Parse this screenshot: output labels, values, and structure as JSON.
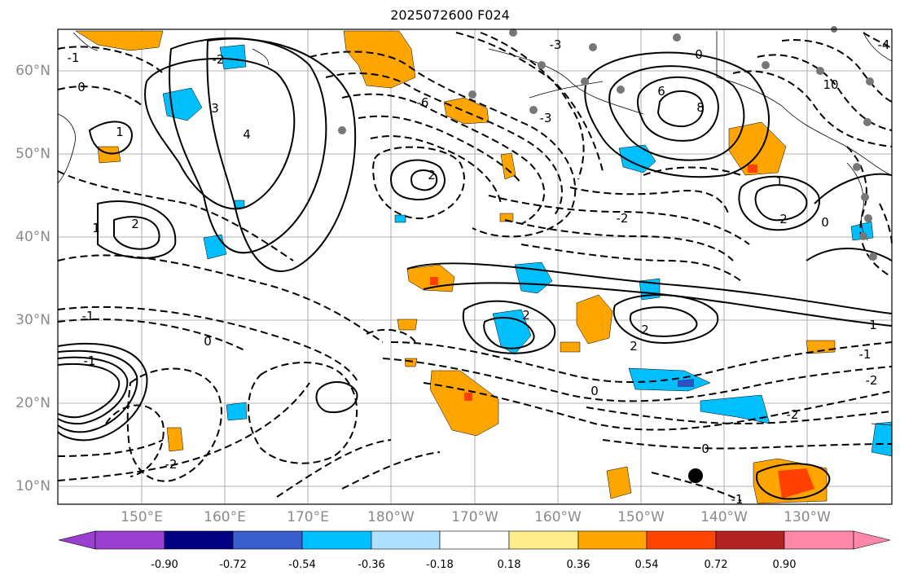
{
  "title": "2025072600 F024",
  "map": {
    "lat_labels": [
      "60°N",
      "50°N",
      "40°N",
      "30°N",
      "20°N",
      "10°N"
    ],
    "lon_labels": [
      "150°E",
      "160°E",
      "170°E",
      "180°W",
      "170°W",
      "160°W",
      "150°W",
      "140°W",
      "130°W"
    ],
    "contour_labels": [
      "-1",
      "0",
      "1",
      "-2",
      "2",
      "3",
      "4",
      "-4",
      "6",
      "-6",
      "8",
      "10",
      "-3",
      "-3",
      "0",
      "2",
      "-2",
      "1",
      "0",
      "2",
      "2",
      "-1",
      "-1",
      "-2",
      "-2",
      "0",
      "1",
      "0",
      "-1",
      "-2",
      "-1",
      "0",
      "1",
      "2",
      "2"
    ],
    "colors": {
      "ocean": "#ffffff",
      "contour": "#000000",
      "grid": "#9a9a9a",
      "orange": "#ffa500",
      "red": "#ff4000",
      "cyan": "#00bfff",
      "darkblue": "#3050c0"
    }
  },
  "colorbar": {
    "colors": [
      "#9a3fd0",
      "#000080",
      "#3a5fcd",
      "#00bfff",
      "#aee0ff",
      "#ffffff",
      "#ffec8b",
      "#ffa500",
      "#ff4500",
      "#b22222",
      "#ff88aa"
    ],
    "tick_labels": [
      "-0.90",
      "-0.72",
      "-0.54",
      "-0.36",
      "-0.18",
      "0.18",
      "0.36",
      "0.54",
      "0.72",
      "0.90"
    ]
  }
}
